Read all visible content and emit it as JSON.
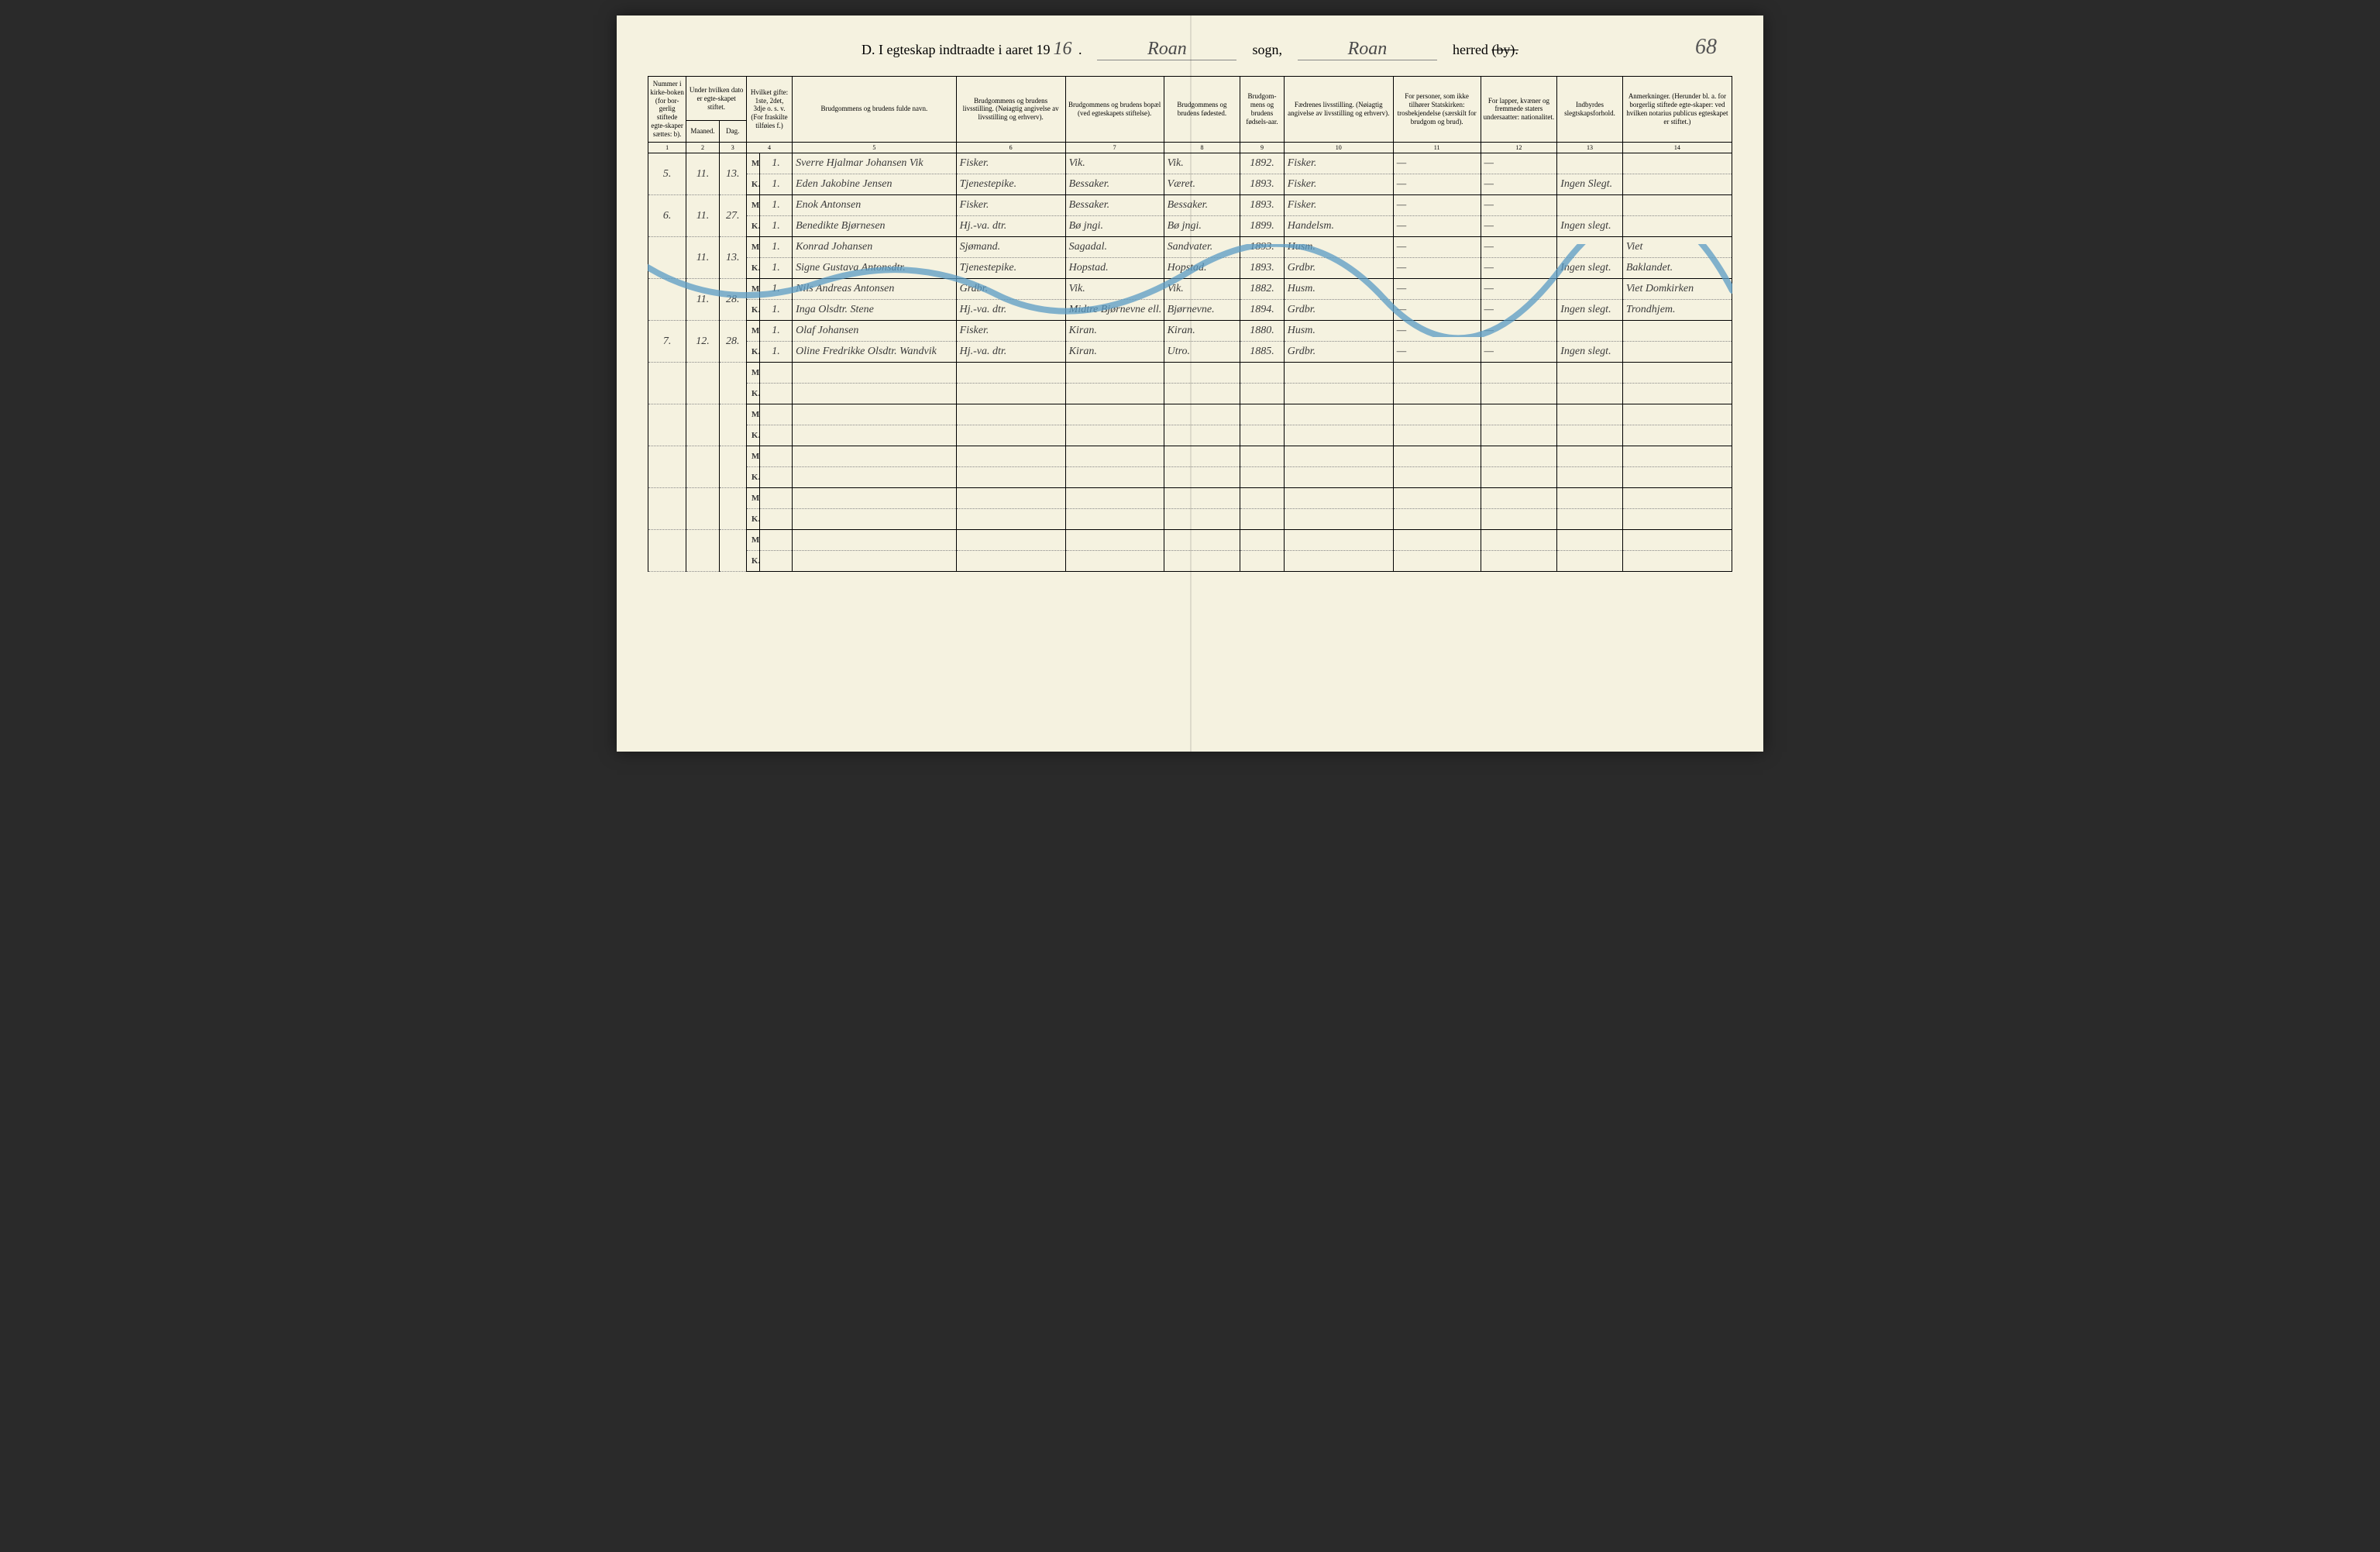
{
  "page_number": "68",
  "header": {
    "title_prefix": "D.   I egteskap indtraadte i aaret 19",
    "year_suffix": "16",
    "sogn_label": "sogn,",
    "sogn_value": "Roan",
    "herred_label": "herred",
    "herred_value": "Roan",
    "by_struck": "(by)."
  },
  "columns": {
    "h1": "Nummer i kirke-boken (for bor-gerlig stiftede egte-skaper sættes: b).",
    "h2_top": "Under hvilken dato er egte-skapet stiftet.",
    "h2a": "Maaned.",
    "h2b": "Dag.",
    "h3": "Hvilket gifte: 1ste, 2det, 3dje o. s. v. (For fraskilte tilføies f.)",
    "h4": "Brudgommens og brudens fulde navn.",
    "h5": "Brudgommens og brudens livsstilling. (Nøiagtig angivelse av livsstilling og erhverv).",
    "h6": "Brudgommens og brudens bopæl (ved egteskapets stiftelse).",
    "h7": "Brudgommens og brudens fødested.",
    "h8": "Brudgom-mens og brudens fødsels-aar.",
    "h9": "Fædrenes livsstilling. (Nøiagtig angivelse av livsstilling og erhverv).",
    "h10": "For personer, som ikke tilhører Statskirken: trosbekjendelse (særskilt for brudgom og brud).",
    "h11": "For lapper, kvæner og fremmede staters undersaatter: nationalitet.",
    "h12": "Indbyrdes slegtskapsforhold.",
    "h13": "Anmerkninger. (Herunder bl. a. for borgerlig stiftede egte-skaper: ved hvilken notarius publicus egteskapet er stiftet.)",
    "n1": "1",
    "n2": "2",
    "n3": "3",
    "n4": "4",
    "n5": "5",
    "n6": "6",
    "n7": "7",
    "n8": "8",
    "n9": "9",
    "n10": "10",
    "n11": "11",
    "n12": "12",
    "n13": "13",
    "n14": "14"
  },
  "rows": [
    {
      "num": "5.",
      "maaned": "11.",
      "dag": "13.",
      "m": {
        "gifte": "1.",
        "navn": "Sverre Hjalmar Johansen Vik",
        "stilling": "Fisker.",
        "bopael": "Vik.",
        "fodested": "Vik.",
        "aar": "1892.",
        "far": "Fisker.",
        "tros": "—",
        "nat": "—",
        "slegt": "",
        "anm": ""
      },
      "k": {
        "gifte": "1.",
        "navn": "Eden Jakobine Jensen",
        "stilling": "Tjenestepike.",
        "bopael": "Bessaker.",
        "fodested": "Været.",
        "aar": "1893.",
        "far": "Fisker.",
        "tros": "—",
        "nat": "—",
        "slegt": "Ingen Slegt.",
        "anm": ""
      }
    },
    {
      "num": "6.",
      "maaned": "11.",
      "dag": "27.",
      "m": {
        "gifte": "1.",
        "navn": "Enok Antonsen",
        "stilling": "Fisker.",
        "bopael": "Bessaker.",
        "fodested": "Bessaker.",
        "aar": "1893.",
        "far": "Fisker.",
        "tros": "—",
        "nat": "—",
        "slegt": "",
        "anm": ""
      },
      "k": {
        "gifte": "1.",
        "navn": "Benedikte Bjørnesen",
        "stilling": "Hj.-va. dtr.",
        "bopael": "Bø jngi.",
        "fodested": "Bø jngi.",
        "aar": "1899.",
        "far": "Handelsm.",
        "tros": "—",
        "nat": "—",
        "slegt": "Ingen slegt.",
        "anm": ""
      }
    },
    {
      "num": "",
      "maaned": "11.",
      "dag": "13.",
      "m": {
        "gifte": "1.",
        "navn": "Konrad Johansen",
        "stilling": "Sjømand.",
        "bopael": "Sagadal.",
        "fodested": "Sandvater.",
        "aar": "1893.",
        "far": "Husm.",
        "tros": "—",
        "nat": "—",
        "slegt": "",
        "anm": "Viet"
      },
      "k": {
        "gifte": "1.",
        "navn": "Signe Gustava Antonsdtr.",
        "stilling": "Tjenestepike.",
        "bopael": "Hopstad.",
        "fodested": "Hopstad.",
        "aar": "1893.",
        "far": "Grdbr.",
        "tros": "—",
        "nat": "—",
        "slegt": "Ingen slegt.",
        "anm": "Baklandet."
      }
    },
    {
      "num": "",
      "maaned": "11.",
      "dag": "28.",
      "m": {
        "gifte": "1.",
        "navn": "Nils Andreas Antonsen",
        "stilling": "Grdbr.",
        "bopael": "Vik.",
        "fodested": "Vik.",
        "aar": "1882.",
        "far": "Husm.",
        "tros": "—",
        "nat": "—",
        "slegt": "",
        "anm": "Viet Domkirken"
      },
      "k": {
        "gifte": "1.",
        "navn": "Inga Olsdtr. Stene",
        "stilling": "Hj.-va. dtr.",
        "bopael": "Midtre Bjørnevne ell. Roan sogn",
        "fodested": "Bjørnevne.",
        "aar": "1894.",
        "far": "Grdbr.",
        "tros": "—",
        "nat": "—",
        "slegt": "Ingen slegt.",
        "anm": "Trondhjem."
      }
    },
    {
      "num": "7.",
      "maaned": "12.",
      "dag": "28.",
      "m": {
        "gifte": "1.",
        "navn": "Olaf Johansen",
        "stilling": "Fisker.",
        "bopael": "Kiran.",
        "fodested": "Kiran.",
        "aar": "1880.",
        "far": "Husm.",
        "tros": "—",
        "nat": "—",
        "slegt": "",
        "anm": ""
      },
      "k": {
        "gifte": "1.",
        "navn": "Oline Fredrikke Olsdtr. Wandvik",
        "stilling": "Hj.-va. dtr.",
        "bopael": "Kiran.",
        "fodested": "Utro.",
        "aar": "1885.",
        "far": "Grdbr.",
        "tros": "—",
        "nat": "—",
        "slegt": "Ingen slegt.",
        "anm": ""
      }
    }
  ],
  "empty_pairs": 5,
  "mk": {
    "m": "M.",
    "k": "K."
  },
  "styling": {
    "page_bg": "#f5f2e0",
    "ink": "#3a3a3a",
    "border": "#000000",
    "wave_stroke": "#5a9bc4",
    "wave_width": 8,
    "handwriting_font": "cursive",
    "printed_font": "Georgia, serif",
    "header_fontsize": 18,
    "cell_fontsize": 14,
    "th_fontsize": 9
  }
}
